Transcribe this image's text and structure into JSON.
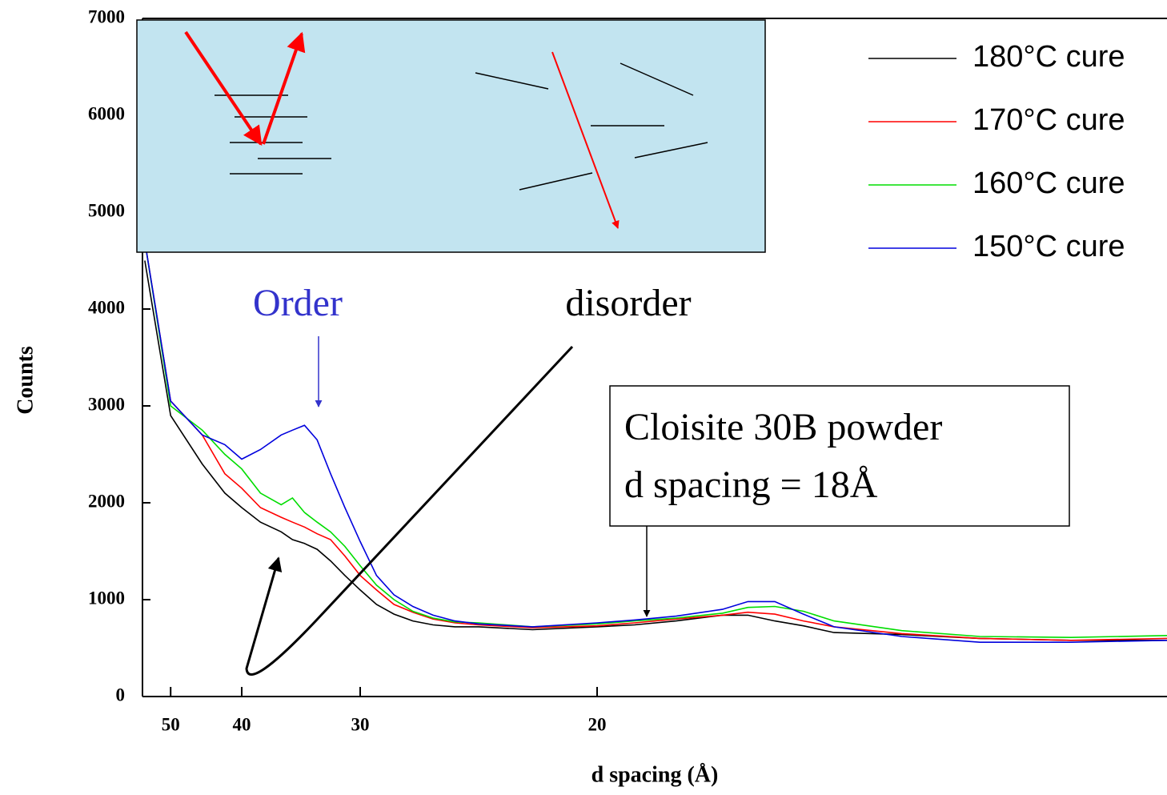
{
  "chart_data": {
    "type": "line",
    "xlabel": "d spacing (Å)",
    "ylabel": "Counts",
    "xscale": "reciprocal",
    "x": [
      55,
      50,
      45,
      42,
      40,
      38,
      36,
      35,
      34,
      33,
      32,
      31,
      30,
      29,
      28,
      27,
      26,
      25,
      24,
      22,
      20,
      19,
      18,
      17,
      16.5,
      16,
      15.5,
      15,
      14,
      13,
      12,
      11.1
    ],
    "series": [
      {
        "name": "180°C cure",
        "color": "#000000",
        "values": [
          4500,
          2900,
          2400,
          2100,
          1950,
          1800,
          1700,
          1620,
          1580,
          1520,
          1400,
          1250,
          1100,
          950,
          850,
          780,
          740,
          720,
          720,
          690,
          720,
          740,
          780,
          840,
          840,
          780,
          730,
          660,
          640,
          600,
          580,
          580
        ]
      },
      {
        "name": "170°C cure",
        "color": "#ff0000",
        "values": [
          4700,
          3050,
          2700,
          2300,
          2150,
          1950,
          1850,
          1800,
          1750,
          1680,
          1620,
          1450,
          1250,
          1100,
          950,
          870,
          800,
          760,
          740,
          710,
          730,
          760,
          800,
          840,
          870,
          850,
          780,
          720,
          650,
          600,
          580,
          600
        ]
      },
      {
        "name": "160°C cure",
        "color": "#00dd00",
        "values": [
          4700,
          3000,
          2750,
          2500,
          2350,
          2100,
          1980,
          2050,
          1900,
          1800,
          1700,
          1550,
          1350,
          1150,
          1000,
          880,
          810,
          770,
          760,
          720,
          750,
          780,
          810,
          860,
          920,
          930,
          880,
          780,
          680,
          620,
          610,
          630
        ]
      },
      {
        "name": "150°C cure",
        "color": "#0000dd",
        "values": [
          4700,
          3050,
          2700,
          2600,
          2450,
          2550,
          2700,
          2750,
          2800,
          2650,
          2300,
          1950,
          1600,
          1250,
          1050,
          930,
          840,
          780,
          750,
          720,
          760,
          790,
          830,
          900,
          980,
          980,
          850,
          720,
          620,
          560,
          560,
          580
        ]
      }
    ],
    "xlim": [
      55.5,
      11.1
    ],
    "xticks": [
      50,
      40,
      30,
      20
    ],
    "ylim": [
      0,
      7000
    ],
    "yticks": [
      0,
      1000,
      2000,
      3000,
      4000,
      5000,
      6000,
      7000
    ],
    "legend": "upper right",
    "annotations": [
      "Order",
      "disorder",
      "Cloisite 30B powder",
      "d spacing = 18Å"
    ]
  }
}
